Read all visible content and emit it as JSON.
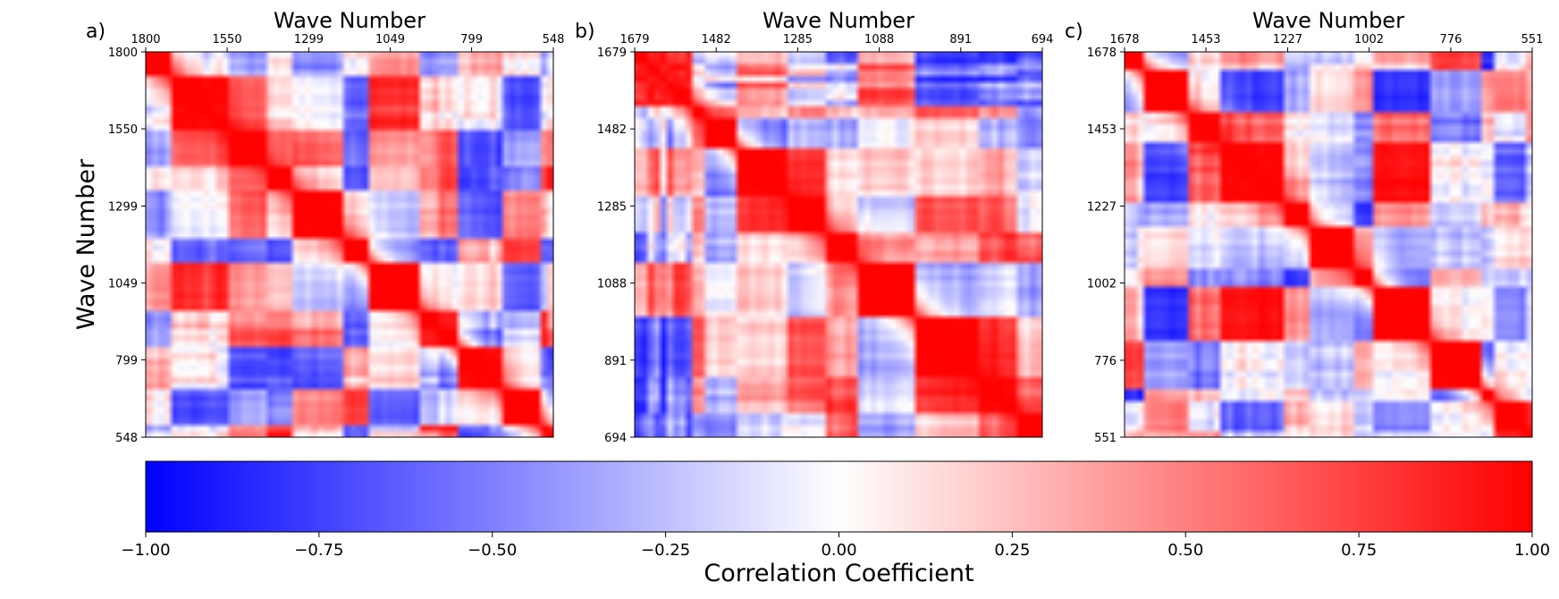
{
  "chart_data": [
    {
      "type": "heatmap",
      "panel_label": "a)",
      "title": "Wave Number",
      "xlabel": "",
      "ylabel": "Wave Number",
      "x_ticks": [
        1800,
        1550,
        1299,
        1049,
        799,
        548
      ],
      "y_ticks": [
        1800,
        1550,
        1299,
        1049,
        799,
        548
      ],
      "x_range": [
        1800,
        548
      ],
      "y_range": [
        1800,
        548
      ],
      "value_range": [
        -1,
        1
      ],
      "diagonal_value": 1.0,
      "description_note": "symmetric correlation matrix"
    },
    {
      "type": "heatmap",
      "panel_label": "b)",
      "title": "Wave Number",
      "xlabel": "",
      "ylabel": "",
      "x_ticks": [
        1679,
        1482,
        1285,
        1088,
        891,
        694
      ],
      "y_ticks": [
        1679,
        1482,
        1285,
        1088,
        891,
        694
      ],
      "x_range": [
        1679,
        694
      ],
      "y_range": [
        1679,
        694
      ],
      "value_range": [
        -1,
        1
      ],
      "diagonal_value": 1.0
    },
    {
      "type": "heatmap",
      "panel_label": "c)",
      "title": "Wave Number",
      "xlabel": "",
      "ylabel": "",
      "x_ticks": [
        1678,
        1453,
        1227,
        1002,
        776,
        551
      ],
      "y_ticks": [
        1678,
        1453,
        1227,
        1002,
        776,
        551
      ],
      "x_range": [
        1678,
        551
      ],
      "y_range": [
        1678,
        551
      ],
      "value_range": [
        -1,
        1
      ],
      "diagonal_value": 1.0
    }
  ],
  "colorbar": {
    "label": "Correlation Coefficient",
    "ticks": [
      "−1.00",
      "−0.75",
      "−0.50",
      "−0.25",
      "0.00",
      "0.25",
      "0.50",
      "0.75",
      "1.00"
    ],
    "colors": {
      "min": "#0000ff",
      "mid": "#ffffff",
      "max": "#ff0000"
    },
    "colormap": "bwr"
  }
}
